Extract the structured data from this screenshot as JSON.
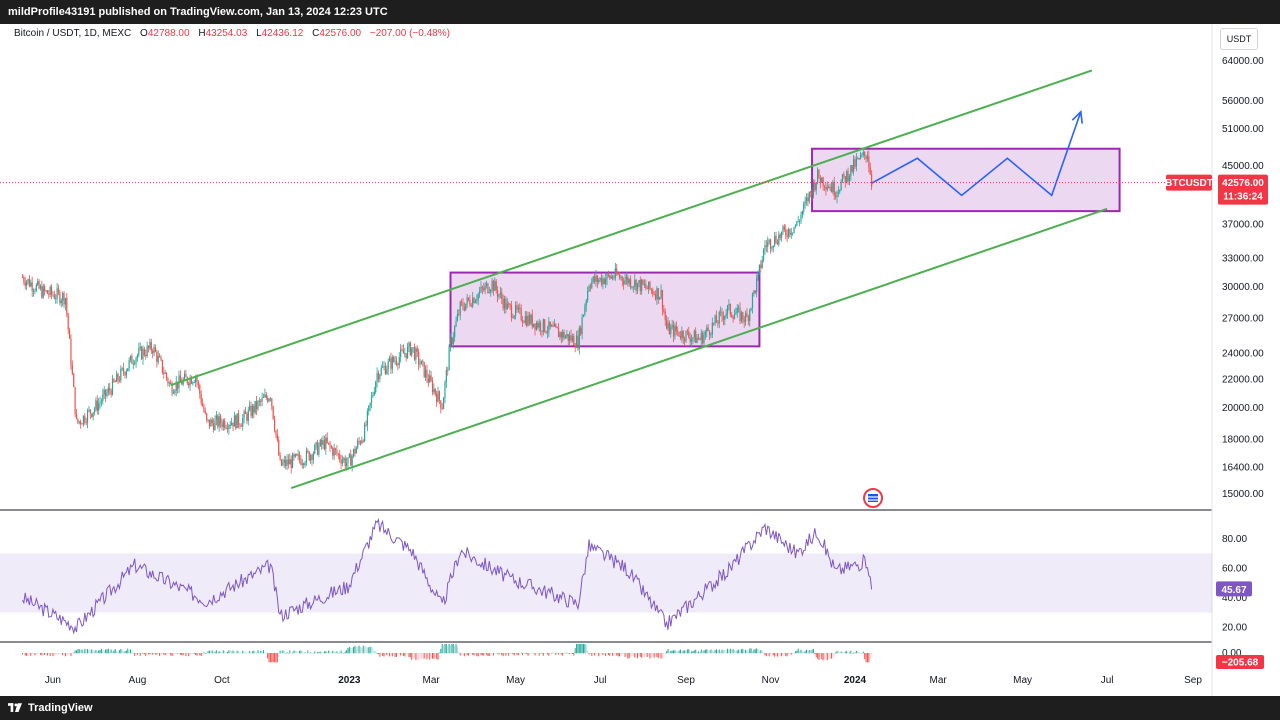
{
  "header": {
    "publish_text": "mildProfile43191 published on TradingView.com, Jan 13, 2024 12:23 UTC"
  },
  "footer": {
    "brand": "TradingView"
  },
  "legend": {
    "symbol": "Bitcoin / USDT, 1D, MEXC",
    "o_label": "O",
    "o": "42788.00",
    "h_label": "H",
    "h": "43254.03",
    "l_label": "L",
    "l": "42436.12",
    "c_label": "C",
    "c": "42576.00",
    "change": "−207.00 (−0.48%)"
  },
  "axis": {
    "unit": "USDT"
  },
  "price_tag": {
    "symbol": "BTCUSDT",
    "price": "42576.00",
    "countdown": "11:36:24"
  },
  "rsi_tag": {
    "value": "45.67"
  },
  "macd_tag": {
    "value": "−205.68"
  },
  "colors": {
    "up": "#26a69a",
    "down": "#ef5350",
    "channel": "#4caf50",
    "box": "#9c27b0",
    "projection": "#2962ff",
    "rsi": "#7e57c2",
    "last_price": "#f23645"
  },
  "chart_data": [
    {
      "type": "candlestick",
      "title": "Bitcoin / USDT, 1D, MEXC",
      "xlabel": "",
      "ylabel": "",
      "y_scale": "log",
      "ylim": [
        14500,
        70000
      ],
      "y_ticks": [
        "64000.00",
        "56000.00",
        "51000.00",
        "45000.00",
        "37000.00",
        "33000.00",
        "30000.00",
        "27000.00",
        "24000.00",
        "22000.00",
        "20000.00",
        "18000.00",
        "16400.00",
        "15000.00"
      ],
      "x_ticks": [
        "Jun",
        "Aug",
        "Oct",
        "2023",
        "Mar",
        "May",
        "Jul",
        "Sep",
        "Nov",
        "2024",
        "Mar",
        "May",
        "Jul",
        "Sep"
      ],
      "price_anchors": [
        {
          "date": "2022-05-10",
          "close": 31000
        },
        {
          "date": "2022-05-25",
          "close": 29500
        },
        {
          "date": "2022-06-10",
          "close": 29000
        },
        {
          "date": "2022-06-18",
          "close": 19000
        },
        {
          "date": "2022-07-01",
          "close": 20000
        },
        {
          "date": "2022-07-10",
          "close": 21000
        },
        {
          "date": "2022-07-30",
          "close": 23800
        },
        {
          "date": "2022-08-12",
          "close": 24500
        },
        {
          "date": "2022-08-25",
          "close": 21500
        },
        {
          "date": "2022-09-12",
          "close": 22300
        },
        {
          "date": "2022-09-20",
          "close": 19000
        },
        {
          "date": "2022-10-15",
          "close": 19200
        },
        {
          "date": "2022-11-05",
          "close": 21000
        },
        {
          "date": "2022-11-12",
          "close": 16500
        },
        {
          "date": "2022-12-01",
          "close": 17000
        },
        {
          "date": "2022-12-14",
          "close": 17800
        },
        {
          "date": "2022-12-31",
          "close": 16600
        },
        {
          "date": "2023-01-12",
          "close": 18500
        },
        {
          "date": "2023-01-21",
          "close": 22500
        },
        {
          "date": "2023-02-15",
          "close": 24500
        },
        {
          "date": "2023-03-09",
          "close": 20200
        },
        {
          "date": "2023-03-15",
          "close": 24800
        },
        {
          "date": "2023-03-22",
          "close": 28000
        },
        {
          "date": "2023-04-14",
          "close": 30400
        },
        {
          "date": "2023-04-25",
          "close": 28000
        },
        {
          "date": "2023-05-12",
          "close": 26800
        },
        {
          "date": "2023-06-15",
          "close": 25000
        },
        {
          "date": "2023-06-23",
          "close": 30500
        },
        {
          "date": "2023-07-13",
          "close": 31200
        },
        {
          "date": "2023-08-14",
          "close": 29300
        },
        {
          "date": "2023-08-18",
          "close": 26100
        },
        {
          "date": "2023-09-11",
          "close": 25200
        },
        {
          "date": "2023-10-01",
          "close": 27800
        },
        {
          "date": "2023-10-15",
          "close": 27000
        },
        {
          "date": "2023-10-23",
          "close": 31000
        },
        {
          "date": "2023-10-28",
          "close": 34500
        },
        {
          "date": "2023-11-20",
          "close": 37000
        },
        {
          "date": "2023-12-05",
          "close": 43500
        },
        {
          "date": "2023-12-18",
          "close": 41500
        },
        {
          "date": "2024-01-02",
          "close": 45500
        },
        {
          "date": "2024-01-10",
          "close": 47000
        },
        {
          "date": "2024-01-13",
          "close": 42576
        }
      ],
      "channel_upper": [
        {
          "date": "2022-08-25",
          "price": 21600
        },
        {
          "date": "2024-06-20",
          "price": 62000
        }
      ],
      "channel_lower": [
        {
          "date": "2022-11-20",
          "price": 15300
        },
        {
          "date": "2024-07-01",
          "price": 39000
        }
      ],
      "range_box_1": {
        "start": "2023-03-15",
        "end": "2023-10-24",
        "top": 31500,
        "bottom": 24600
      },
      "range_box_2": {
        "start": "2023-12-01",
        "end": "2024-07-10",
        "top": 47700,
        "bottom": 38700
      },
      "projection": [
        {
          "date": "2024-01-13",
          "price": 42500
        },
        {
          "date": "2024-02-15",
          "price": 46200
        },
        {
          "date": "2024-03-18",
          "price": 40800
        },
        {
          "date": "2024-04-20",
          "price": 46200
        },
        {
          "date": "2024-05-22",
          "price": 40800
        },
        {
          "date": "2024-06-12",
          "price": 54000
        }
      ]
    },
    {
      "type": "line",
      "name": "RSI",
      "ylim": [
        10,
        100
      ],
      "band": [
        30,
        70
      ],
      "y_ticks": [
        "80.00",
        "60.00",
        "40.00",
        "20.00"
      ],
      "anchors": [
        {
          "date": "2022-05-10",
          "value": 40
        },
        {
          "date": "2022-06-18",
          "value": 20
        },
        {
          "date": "2022-07-30",
          "value": 62
        },
        {
          "date": "2022-09-20",
          "value": 38
        },
        {
          "date": "2022-11-05",
          "value": 62
        },
        {
          "date": "2022-11-12",
          "value": 28
        },
        {
          "date": "2022-12-31",
          "value": 48
        },
        {
          "date": "2023-01-21",
          "value": 90
        },
        {
          "date": "2023-02-15",
          "value": 72
        },
        {
          "date": "2023-03-09",
          "value": 34
        },
        {
          "date": "2023-03-22",
          "value": 72
        },
        {
          "date": "2023-04-25",
          "value": 54
        },
        {
          "date": "2023-06-15",
          "value": 36
        },
        {
          "date": "2023-06-23",
          "value": 75
        },
        {
          "date": "2023-07-20",
          "value": 60
        },
        {
          "date": "2023-08-18",
          "value": 22
        },
        {
          "date": "2023-09-11",
          "value": 42
        },
        {
          "date": "2023-10-01",
          "value": 58
        },
        {
          "date": "2023-10-28",
          "value": 88
        },
        {
          "date": "2023-11-20",
          "value": 70
        },
        {
          "date": "2023-12-05",
          "value": 85
        },
        {
          "date": "2023-12-18",
          "value": 58
        },
        {
          "date": "2024-01-10",
          "value": 65
        },
        {
          "date": "2024-01-13",
          "value": 45.67
        }
      ]
    },
    {
      "type": "bar",
      "name": "MACD",
      "y_ticks": [
        "0.00"
      ],
      "last_value": -205.68
    }
  ]
}
